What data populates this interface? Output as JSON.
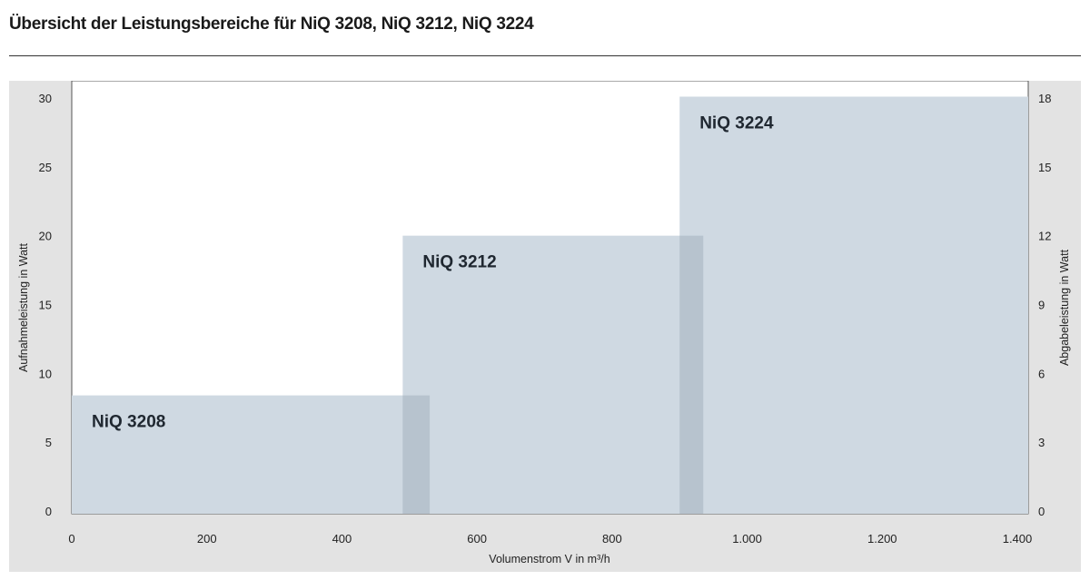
{
  "title": "Übersicht der Leistungsbereiche für NiQ 3208, NiQ 3212, NiQ 3224",
  "chart_data": {
    "type": "area",
    "title": "Übersicht der Leistungsbereiche für NiQ 3208, NiQ 3212, NiQ 3224",
    "xlabel": "Volumenstrom V in m³/h",
    "ylabel_left": "Aufnahmeleistung in Watt",
    "ylabel_right": "Abgabeleistung in Watt",
    "xlim": [
      0,
      1400
    ],
    "ylim_left": [
      0,
      30
    ],
    "ylim_right": [
      0,
      18
    ],
    "x_ticks": [
      {
        "value": 0,
        "label": "0"
      },
      {
        "value": 200,
        "label": "200"
      },
      {
        "value": 400,
        "label": "400"
      },
      {
        "value": 600,
        "label": "600"
      },
      {
        "value": 800,
        "label": "800"
      },
      {
        "value": 1000,
        "label": "1.000"
      },
      {
        "value": 1200,
        "label": "1.200"
      },
      {
        "value": 1400,
        "label": "1.400"
      }
    ],
    "y_left_ticks": [
      {
        "value": 0,
        "label": "0"
      },
      {
        "value": 5,
        "label": "5"
      },
      {
        "value": 10,
        "label": "10"
      },
      {
        "value": 15,
        "label": "15"
      },
      {
        "value": 20,
        "label": "20"
      },
      {
        "value": 25,
        "label": "25"
      },
      {
        "value": 30,
        "label": "30"
      }
    ],
    "y_right_ticks": [
      {
        "value": 0,
        "label": "0"
      },
      {
        "value": 3,
        "label": "3"
      },
      {
        "value": 6,
        "label": "6"
      },
      {
        "value": 9,
        "label": "9"
      },
      {
        "value": 12,
        "label": "12"
      },
      {
        "value": 15,
        "label": "15"
      },
      {
        "value": 18,
        "label": "18"
      }
    ],
    "series": [
      {
        "name": "NiQ 3208",
        "x_range": [
          0,
          530
        ],
        "y_max": 8.4
      },
      {
        "name": "NiQ 3212",
        "x_range": [
          490,
          935
        ],
        "y_max": 20
      },
      {
        "name": "NiQ 3224",
        "x_range": [
          900,
          1400
        ],
        "y_max": 30.1
      }
    ],
    "grid": false,
    "colors": {
      "frame": "#e3e3e3",
      "plot_background": "#ffffff",
      "band": "#cfd9e2",
      "overlap": "#b7c3ce",
      "label": "#1f2730"
    }
  }
}
